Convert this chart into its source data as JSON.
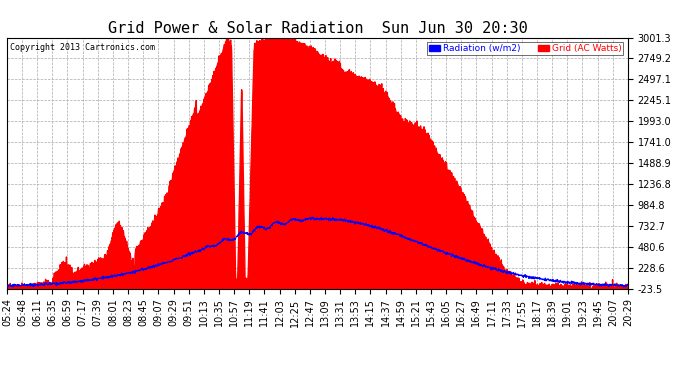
{
  "title": "Grid Power & Solar Radiation  Sun Jun 30 20:30",
  "copyright": "Copyright 2013 Cartronics.com",
  "legend_radiation": "Radiation (w/m2)",
  "legend_grid": "Grid (AC Watts)",
  "y_ticks": [
    3001.3,
    2749.2,
    2497.1,
    2245.1,
    1993.0,
    1741.0,
    1488.9,
    1236.8,
    984.8,
    732.7,
    480.6,
    228.6,
    -23.5
  ],
  "x_labels": [
    "05:24",
    "05:48",
    "06:11",
    "06:35",
    "06:59",
    "07:17",
    "07:39",
    "08:01",
    "08:23",
    "08:45",
    "09:07",
    "09:29",
    "09:51",
    "10:13",
    "10:35",
    "10:57",
    "11:19",
    "11:41",
    "12:03",
    "12:25",
    "12:47",
    "13:09",
    "13:31",
    "13:53",
    "14:15",
    "14:37",
    "14:59",
    "15:21",
    "15:43",
    "16:05",
    "16:27",
    "16:49",
    "17:11",
    "17:33",
    "17:55",
    "18:17",
    "18:39",
    "19:01",
    "19:23",
    "19:45",
    "20:07",
    "20:29"
  ],
  "bg_color": "#ffffff",
  "plot_bg": "#ffffff",
  "grid_color": "#aaaaaa",
  "radiation_color": "#0000ff",
  "grid_power_color": "#ff0000",
  "title_fontsize": 11,
  "tick_fontsize": 7,
  "ymin": -23.5,
  "ymax": 3001.3
}
